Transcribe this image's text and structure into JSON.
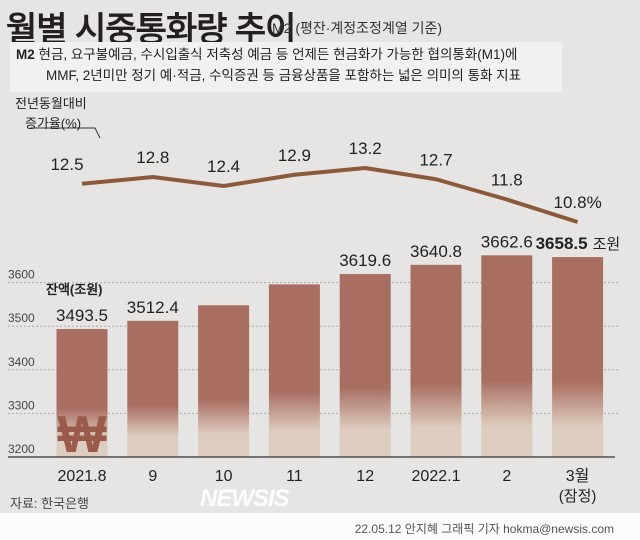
{
  "header": {
    "title": "월별 시중통화량 추이",
    "subtitle": "M2 (평잔·계정조정계열 기준)"
  },
  "description": {
    "term": "M2",
    "line1": "현금, 요구불예금, 수시입출식 저축성 예금 등 언제든 현금화가 가능한 협의통화(M1)에",
    "line2": "MMF, 2년미만 정기 예·적금, 수익증권 등 금융상품을 포함하는 넓은 의미의 통화 지표"
  },
  "footer": {
    "source": "자료: 한국은행",
    "credit": "22.05.12 안지혜 그래픽 기자 hokma@newsis.com",
    "logo": "NEWSIS"
  },
  "colors": {
    "bar_top": "#a86e61",
    "bar_bottom": "#ddcdbf",
    "line": "#8a5a3a",
    "won": "#9a5a4c"
  },
  "chart_data": [
    {
      "type": "line",
      "title": "전년동월대비 증가율(%)",
      "ylabel_line1": "전년동월대비",
      "ylabel_line2": "증가율(%)",
      "categories": [
        "2021.8",
        "9",
        "10",
        "11",
        "12",
        "2022.1",
        "2",
        "3월(잠정)"
      ],
      "values": [
        12.5,
        12.8,
        12.4,
        12.9,
        13.2,
        12.7,
        11.8,
        10.8
      ],
      "labels": [
        "12.5",
        "12.8",
        "12.4",
        "12.9",
        "13.2",
        "12.7",
        "11.8",
        "10.8%"
      ]
    },
    {
      "type": "bar",
      "ylabel": "잔액(조원)",
      "unit_suffix": "조원",
      "currency_symbol": "₩",
      "categories": [
        "2021.8",
        "9",
        "10",
        "11",
        "12",
        "2022.1",
        "2",
        "3월"
      ],
      "category_sub": [
        "",
        "",
        "",
        "",
        "",
        "",
        "",
        "(잠정)"
      ],
      "values": [
        3493.5,
        3512.4,
        3548,
        3596,
        3619.6,
        3640.8,
        3662.6,
        3658.5
      ],
      "labels": [
        "3493.5",
        "3512.4",
        "",
        "",
        "3619.6",
        "3640.8",
        "3662.6",
        "3658.5"
      ],
      "yticks": [
        "3200",
        "3300",
        "3400",
        "3500",
        "3600"
      ],
      "ylim": [
        3200,
        3700
      ],
      "grid": true
    }
  ]
}
